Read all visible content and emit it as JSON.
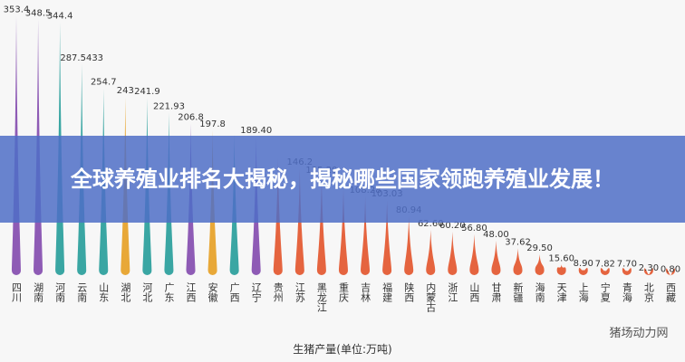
{
  "banner": "全球养殖业排名大揭秘，揭秘哪些国家领跑养殖业发展！",
  "watermark": "猪场动力网",
  "chart_data": {
    "type": "drop",
    "xlabel": "生猪产量(单位:万吨)",
    "categories": [
      "四川",
      "湖南",
      "河南",
      "云南",
      "山东",
      "湖北",
      "河北",
      "广东",
      "江西",
      "安徽",
      "广西",
      "辽宁",
      "贵州",
      "江苏",
      "黑龙江",
      "重庆",
      "吉林",
      "福建",
      "陕西",
      "内蒙古",
      "浙江",
      "山西",
      "甘肃",
      "新疆",
      "海南",
      "天津",
      "上海",
      "宁夏",
      "青海",
      "北京",
      "西藏"
    ],
    "values": [
      353.4,
      348.5,
      344.4,
      287.5433,
      254.7,
      243,
      241.9,
      221.93,
      206.8,
      197.8,
      192,
      189.4,
      160,
      146.2,
      135.2,
      120,
      108.28,
      103.03,
      80.94,
      62.6,
      60.2,
      56.8,
      48,
      37.62,
      29.5,
      15.6,
      8.9,
      7.82,
      7.7,
      2.3,
      0.8
    ],
    "value_labels": [
      "353.4",
      "348.5",
      "344.4",
      "287.5433",
      "254.7",
      "243",
      "241.9",
      "221.93",
      "206.8",
      "197.8",
      null,
      "189.40",
      null,
      "146.2",
      "135.20",
      null,
      "108.28",
      "103.03",
      "80.94",
      "62.60",
      "60.20",
      "56.80",
      "48.00",
      "37.62",
      "29.50",
      "15.60",
      "8.90",
      "7.82",
      "7.70",
      "2.30",
      "0.80"
    ],
    "colors": [
      "#8e5bb5",
      "#8e5bb5",
      "#3aa6a3",
      "#3aa6a3",
      "#3aa6a3",
      "#e8a838",
      "#3aa6a3",
      "#3aa6a3",
      "#8e5bb5",
      "#e8a838",
      "#3aa6a3",
      "#8e5bb5",
      "#e5643f",
      "#e5643f",
      "#e5643f",
      "#e5643f",
      "#e5643f",
      "#e5643f",
      "#e5643f",
      "#e5643f",
      "#e5643f",
      "#e5643f",
      "#e5643f",
      "#e5643f",
      "#e5643f",
      "#e5643f",
      "#e5643f",
      "#e5643f",
      "#e5643f",
      "#e5643f",
      "#e5643f"
    ],
    "ylim": [
      0,
      360
    ]
  }
}
